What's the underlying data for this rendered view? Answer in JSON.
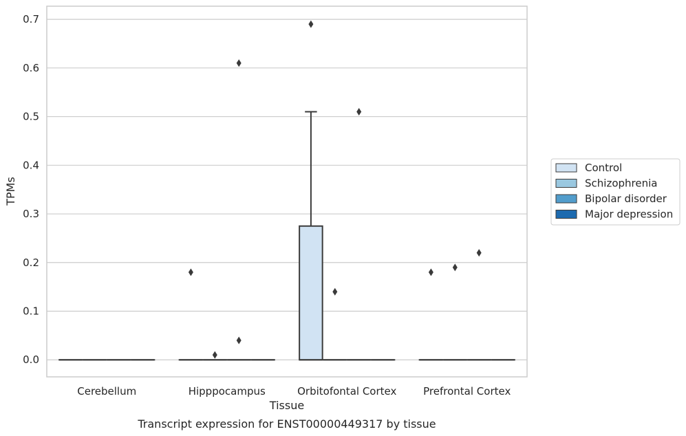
{
  "chart_data": {
    "type": "box",
    "caption": "Transcript expression for ENST00000449317 by tissue",
    "xlabel": "Tissue",
    "ylabel": "TPMs",
    "ylim": [
      -0.035,
      0.727
    ],
    "yticks": [
      0.0,
      0.1,
      0.2,
      0.3,
      0.4,
      0.5,
      0.6,
      0.7
    ],
    "ytick_labels": [
      "0.0",
      "0.1",
      "0.2",
      "0.3",
      "0.4",
      "0.5",
      "0.6",
      "0.7"
    ],
    "grid": "horizontal",
    "categories": [
      "Cerebellum",
      "Hipppocampus",
      "Orbitofontal Cortex",
      "Prefrontal Cortex"
    ],
    "legend": {
      "placement": "outside-right",
      "entries": [
        {
          "name": "Control",
          "color": "#d1e3f3"
        },
        {
          "name": "Schizophrenia",
          "color": "#9ac8e0"
        },
        {
          "name": "Bipolar disorder",
          "color": "#529dcc"
        },
        {
          "name": "Major depression",
          "color": "#1c6aaf"
        }
      ]
    },
    "series": [
      {
        "name": "Control",
        "boxes": [
          {
            "category": "Cerebellum",
            "min": 0,
            "q1": 0,
            "median": 0,
            "q3": 0,
            "max": 0,
            "outliers": []
          },
          {
            "category": "Hipppocampus",
            "min": 0,
            "q1": 0,
            "median": 0,
            "q3": 0,
            "max": 0,
            "outliers": [
              0.18
            ]
          },
          {
            "category": "Orbitofontal Cortex",
            "min": 0,
            "q1": 0,
            "median": 0,
            "q3": 0.275,
            "max": 0.51,
            "outliers": [
              0.69
            ]
          },
          {
            "category": "Prefrontal Cortex",
            "min": 0,
            "q1": 0,
            "median": 0,
            "q3": 0,
            "max": 0,
            "outliers": [
              0.18
            ]
          }
        ]
      },
      {
        "name": "Schizophrenia",
        "boxes": [
          {
            "category": "Cerebellum",
            "min": 0,
            "q1": 0,
            "median": 0,
            "q3": 0,
            "max": 0,
            "outliers": []
          },
          {
            "category": "Hipppocampus",
            "min": 0,
            "q1": 0,
            "median": 0,
            "q3": 0,
            "max": 0,
            "outliers": [
              0.01
            ]
          },
          {
            "category": "Orbitofontal Cortex",
            "min": 0,
            "q1": 0,
            "median": 0,
            "q3": 0,
            "max": 0,
            "outliers": [
              0.14
            ]
          },
          {
            "category": "Prefrontal Cortex",
            "min": 0,
            "q1": 0,
            "median": 0,
            "q3": 0,
            "max": 0,
            "outliers": [
              0.19
            ]
          }
        ]
      },
      {
        "name": "Bipolar disorder",
        "boxes": [
          {
            "category": "Cerebellum",
            "min": 0,
            "q1": 0,
            "median": 0,
            "q3": 0,
            "max": 0,
            "outliers": []
          },
          {
            "category": "Hipppocampus",
            "min": 0,
            "q1": 0,
            "median": 0,
            "q3": 0,
            "max": 0,
            "outliers": [
              0.61,
              0.04
            ]
          },
          {
            "category": "Orbitofontal Cortex",
            "min": 0,
            "q1": 0,
            "median": 0,
            "q3": 0,
            "max": 0,
            "outliers": [
              0.51
            ]
          },
          {
            "category": "Prefrontal Cortex",
            "min": 0,
            "q1": 0,
            "median": 0,
            "q3": 0,
            "max": 0,
            "outliers": [
              0.22
            ]
          }
        ]
      },
      {
        "name": "Major depression",
        "boxes": [
          {
            "category": "Cerebellum",
            "min": 0,
            "q1": 0,
            "median": 0,
            "q3": 0,
            "max": 0,
            "outliers": []
          },
          {
            "category": "Hipppocampus",
            "min": 0,
            "q1": 0,
            "median": 0,
            "q3": 0,
            "max": 0,
            "outliers": []
          },
          {
            "category": "Orbitofontal Cortex",
            "min": 0,
            "q1": 0,
            "median": 0,
            "q3": 0,
            "max": 0,
            "outliers": []
          },
          {
            "category": "Prefrontal Cortex",
            "min": 0,
            "q1": 0,
            "median": 0,
            "q3": 0,
            "max": 0,
            "outliers": []
          }
        ]
      }
    ],
    "colors": {
      "axes_edge": "#cccccc",
      "grid": "#cccccc",
      "line": "#3a3a3a",
      "flier": "#3a3a3a"
    }
  }
}
